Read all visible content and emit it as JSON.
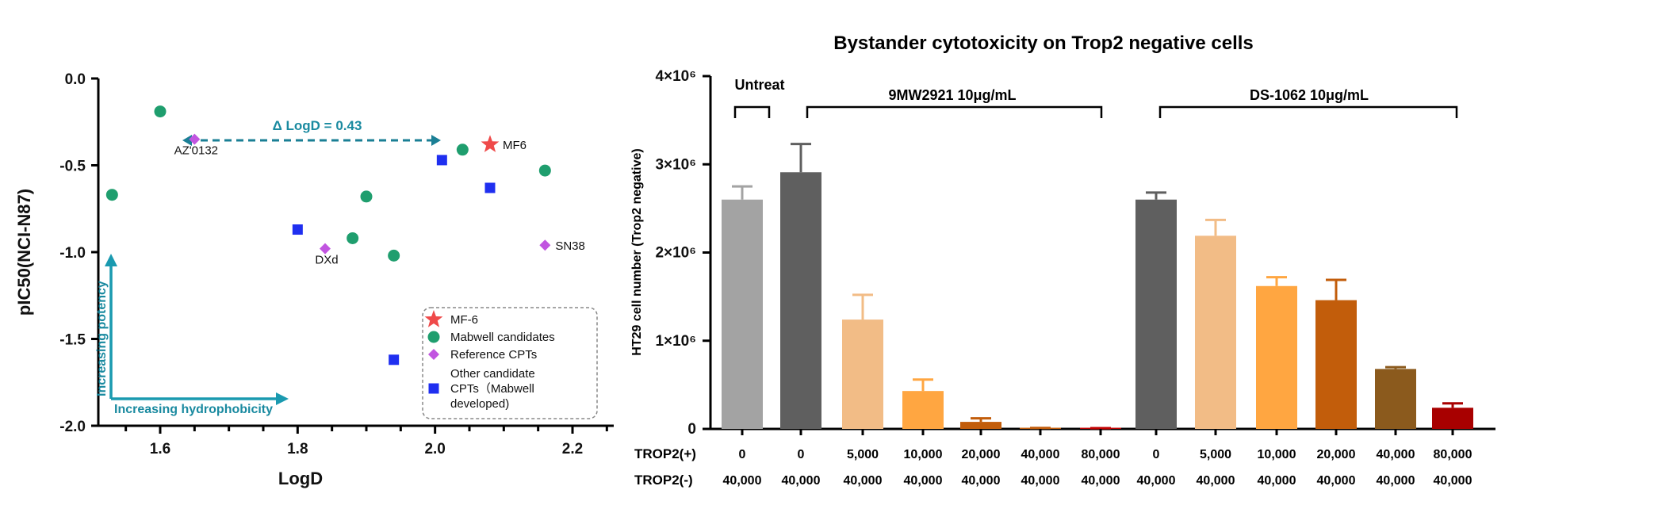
{
  "chart_data": [
    {
      "type": "scatter",
      "xlabel": "LogD",
      "ylabel": "pIC50(NCI-N87)",
      "xlim": [
        1.51,
        2.26
      ],
      "ylim": [
        -2.0,
        0.0
      ],
      "x_ticks": [
        "1.6",
        "1.8",
        "2.0",
        "2.2"
      ],
      "y_ticks": [
        "0.0",
        "-0.5",
        "-1.0",
        "-1.5",
        "-2.0"
      ],
      "series": [
        {
          "name": "MF-6",
          "marker": "star",
          "color": "#ef4a4a",
          "points": [
            {
              "x": 2.08,
              "y": -0.38,
              "label": "MF6"
            }
          ]
        },
        {
          "name": "Mabwell candidates",
          "marker": "circle",
          "color": "#1f9e6e",
          "points": [
            {
              "x": 1.53,
              "y": -0.67
            },
            {
              "x": 1.6,
              "y": -0.19
            },
            {
              "x": 1.88,
              "y": -0.92
            },
            {
              "x": 1.9,
              "y": -0.68
            },
            {
              "x": 1.94,
              "y": -1.02
            },
            {
              "x": 2.04,
              "y": -0.41
            },
            {
              "x": 2.16,
              "y": -0.53
            }
          ]
        },
        {
          "name": "Reference CPTs",
          "marker": "diamond",
          "color": "#c155e0",
          "points": [
            {
              "x": 1.65,
              "y": -0.35,
              "label": "AZ'0132"
            },
            {
              "x": 1.84,
              "y": -0.98,
              "label": "DXd"
            },
            {
              "x": 2.16,
              "y": -0.96,
              "label": "SN38"
            }
          ]
        },
        {
          "name": "Other candidate CPTs(Mabwell developed)",
          "marker": "square",
          "color": "#1f2ff0",
          "points": [
            {
              "x": 1.8,
              "y": -0.87
            },
            {
              "x": 1.94,
              "y": -1.62
            },
            {
              "x": 2.01,
              "y": -0.47
            },
            {
              "x": 2.08,
              "y": -0.63
            }
          ]
        }
      ],
      "annotations": {
        "delta": "Δ LogD = 0.43",
        "potency": "Increasing potency",
        "hydrophobicity": "Increasing hydrophobicity"
      },
      "legend": {
        "position": "bottom-right",
        "items": [
          "MF-6",
          "Mabwell candidates",
          "Reference CPTs",
          "Other candidate",
          "CPTs（Mabwell",
          "developed)"
        ]
      }
    },
    {
      "type": "bar",
      "title": "Bystander cytotoxicity on Trop2 negative cells",
      "ylabel": "HT29 cell number (Trop2 negative)",
      "ylim": [
        0,
        4000000
      ],
      "y_ticks": [
        "0",
        "1×10⁶",
        "2×10⁶",
        "3×10⁶",
        "4×10⁶"
      ],
      "values": [
        2600000,
        2910000,
        1240000,
        430000,
        80000,
        8000,
        6000,
        2600000,
        2190000,
        1620000,
        1460000,
        680000,
        240000
      ],
      "errors": [
        150000,
        320000,
        280000,
        130000,
        40000,
        3000,
        3000,
        80000,
        180000,
        100000,
        230000,
        20000,
        50000
      ],
      "colors": [
        "#a3a3a3",
        "#5f5f5f",
        "#f2bc86",
        "#ffa641",
        "#c25d0b",
        "#c25d0b",
        "#c00000",
        "#5f5f5f",
        "#f2bc86",
        "#ffa641",
        "#c25d0b",
        "#8b5a1d",
        "#a80000"
      ],
      "groups": [
        {
          "label": "Untreat",
          "from": 0,
          "to": 0
        },
        {
          "label": "9MW2921 10μg/mL",
          "from": 1,
          "to": 6
        },
        {
          "label": "DS-1062 10μg/mL",
          "from": 7,
          "to": 12
        }
      ],
      "row_labels": [
        "TROP2(+)",
        "TROP2(-)"
      ],
      "trop2_pos": [
        "0",
        "0",
        "5,000",
        "10,000",
        "20,000",
        "40,000",
        "80,000",
        "0",
        "5,000",
        "10,000",
        "20,000",
        "40,000",
        "80,000"
      ],
      "trop2_neg": [
        "40,000",
        "40,000",
        "40,000",
        "40,000",
        "40,000",
        "40,000",
        "40,000",
        "40,000",
        "40,000",
        "40,000",
        "40,000",
        "40,000",
        "40,000"
      ]
    }
  ]
}
